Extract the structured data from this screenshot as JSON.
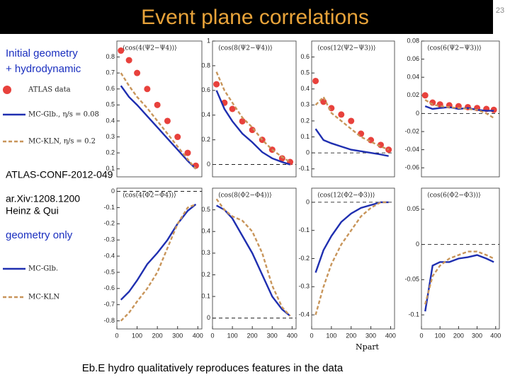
{
  "header": {
    "title": "Event plane correlations",
    "page": "23"
  },
  "notes": {
    "upper": [
      "Initial geometry",
      "+ hydrodynamic"
    ],
    "refs": [
      "ATLAS-CONF-2012-049",
      "ar.Xiv:1208.1200",
      "Heinz & Qui"
    ],
    "lower": "geometry only",
    "footer": "Eb.E hydro qualitatively reproduces features in the data"
  },
  "chart_data": [
    {
      "type": "line",
      "title": "⟨cos(4(Ψ2−Ψ4))⟩",
      "x": [
        20,
        60,
        100,
        150,
        200,
        250,
        300,
        350,
        390
      ],
      "xlim": [
        0,
        420
      ],
      "ylim": [
        0.05,
        0.9
      ],
      "yticks": [
        0.1,
        0.2,
        0.3,
        0.4,
        0.5,
        0.6,
        0.7,
        0.8
      ],
      "series": [
        {
          "name": "ATLAS data",
          "color": "#e8413c",
          "style": "points",
          "values": [
            0.84,
            0.78,
            0.7,
            0.6,
            0.5,
            0.4,
            0.3,
            0.2,
            0.12
          ]
        },
        {
          "name": "MC-Glb., η/s = 0.08",
          "color": "#1f2fb0",
          "style": "solid",
          "values": [
            0.62,
            0.55,
            0.5,
            0.43,
            0.36,
            0.29,
            0.22,
            0.15,
            0.1
          ]
        },
        {
          "name": "MC-KLN, η/s = 0.2",
          "color": "#c8955a",
          "style": "dashed",
          "values": [
            0.7,
            0.62,
            0.55,
            0.48,
            0.4,
            0.32,
            0.24,
            0.16,
            0.1
          ]
        }
      ]
    },
    {
      "type": "line",
      "title": "⟨cos(8(Ψ2−Ψ4))⟩",
      "x": [
        20,
        60,
        100,
        150,
        200,
        250,
        300,
        350,
        390
      ],
      "xlim": [
        0,
        420
      ],
      "ylim": [
        -0.1,
        1
      ],
      "yticks": [
        0,
        0.2,
        0.4,
        0.6,
        0.8,
        1
      ],
      "series": [
        {
          "color": "#e8413c",
          "style": "points",
          "values": [
            0.65,
            0.5,
            0.45,
            0.35,
            0.28,
            0.2,
            0.12,
            0.05,
            0.02
          ]
        },
        {
          "color": "#1f2fb0",
          "style": "solid",
          "values": [
            0.6,
            0.45,
            0.35,
            0.25,
            0.18,
            0.1,
            0.05,
            0.02,
            0
          ]
        },
        {
          "color": "#c8955a",
          "style": "dashed",
          "values": [
            0.75,
            0.6,
            0.5,
            0.38,
            0.3,
            0.2,
            0.12,
            0.06,
            0.02
          ]
        }
      ]
    },
    {
      "type": "line",
      "title": "⟨cos(12(Ψ2−Ψ3))⟩",
      "x": [
        20,
        60,
        100,
        150,
        200,
        250,
        300,
        350,
        390
      ],
      "xlim": [
        0,
        420
      ],
      "ylim": [
        -0.15,
        0.7
      ],
      "yticks": [
        -0.1,
        0,
        0.1,
        0.2,
        0.3,
        0.4,
        0.5,
        0.6
      ],
      "series": [
        {
          "color": "#e8413c",
          "style": "points",
          "values": [
            0.45,
            0.32,
            0.28,
            0.24,
            0.2,
            0.12,
            0.08,
            0.05,
            0.02
          ]
        },
        {
          "color": "#1f2fb0",
          "style": "solid",
          "values": [
            0.15,
            0.08,
            0.06,
            0.04,
            0.02,
            0.01,
            0,
            -0.01,
            -0.02
          ]
        },
        {
          "color": "#c8955a",
          "style": "dashed",
          "values": [
            0.3,
            0.35,
            0.25,
            0.2,
            0.15,
            0.1,
            0.07,
            0.04,
            0.02
          ]
        }
      ]
    },
    {
      "type": "line",
      "title": "⟨cos(6(Ψ2−Ψ3))⟩",
      "x": [
        20,
        60,
        100,
        150,
        200,
        250,
        300,
        350,
        390
      ],
      "xlim": [
        0,
        420
      ],
      "ylim": [
        -0.07,
        0.08
      ],
      "yticks": [
        -0.06,
        -0.04,
        -0.02,
        0,
        0.02,
        0.04,
        0.06,
        0.08
      ],
      "series": [
        {
          "color": "#e8413c",
          "style": "points",
          "values": [
            0.02,
            0.012,
            0.01,
            0.009,
            0.008,
            0.007,
            0.006,
            0.005,
            0.004
          ]
        },
        {
          "color": "#1f2fb0",
          "style": "solid",
          "values": [
            0.008,
            0.005,
            0.006,
            0.007,
            0.005,
            0.006,
            0.004,
            0.003,
            0.003
          ]
        },
        {
          "color": "#c8955a",
          "style": "dashed",
          "values": [
            0.015,
            0.01,
            0.008,
            0.007,
            0.006,
            0.005,
            0.004,
            0,
            -0.005
          ]
        }
      ]
    },
    {
      "type": "line",
      "title": "⟨cos(4(Φ2−Φ4))⟩",
      "x": [
        20,
        60,
        100,
        150,
        200,
        250,
        300,
        350,
        390
      ],
      "xlim": [
        0,
        420
      ],
      "ylim": [
        -0.85,
        0.02
      ],
      "yticks": [
        0,
        -0.1,
        -0.2,
        -0.3,
        -0.4,
        -0.5,
        -0.6,
        -0.7,
        -0.8
      ],
      "xticks": [
        0,
        100,
        200,
        300,
        400
      ],
      "series": [
        {
          "name": "MC-Glb.",
          "color": "#1f2fb0",
          "style": "solid",
          "values": [
            -0.67,
            -0.62,
            -0.55,
            -0.45,
            -0.38,
            -0.3,
            -0.2,
            -0.12,
            -0.08
          ]
        },
        {
          "name": "MC-KLN",
          "color": "#c8955a",
          "style": "dashed",
          "values": [
            -0.8,
            -0.75,
            -0.68,
            -0.6,
            -0.5,
            -0.35,
            -0.2,
            -0.1,
            -0.08
          ]
        }
      ]
    },
    {
      "type": "line",
      "title": "⟨cos(8(Φ2−Φ4))⟩",
      "x": [
        20,
        60,
        100,
        150,
        200,
        250,
        300,
        350,
        390
      ],
      "xlim": [
        0,
        420
      ],
      "ylim": [
        -0.05,
        0.6
      ],
      "yticks": [
        0,
        0.1,
        0.2,
        0.3,
        0.4,
        0.5
      ],
      "xticks": [
        0,
        100,
        200,
        300,
        400
      ],
      "series": [
        {
          "color": "#1f2fb0",
          "style": "solid",
          "values": [
            0.52,
            0.5,
            0.46,
            0.38,
            0.3,
            0.2,
            0.1,
            0.04,
            0.01
          ]
        },
        {
          "color": "#c8955a",
          "style": "dashed",
          "values": [
            0.55,
            0.5,
            0.47,
            0.45,
            0.4,
            0.3,
            0.15,
            0.05,
            0.01
          ]
        }
      ]
    },
    {
      "type": "line",
      "title": "⟨cos(12(Φ2−Φ3))⟩",
      "x": [
        20,
        60,
        100,
        150,
        200,
        250,
        300,
        350,
        390
      ],
      "xlim": [
        0,
        420
      ],
      "ylim": [
        -0.45,
        0.05
      ],
      "yticks": [
        0,
        -0.1,
        -0.2,
        -0.3,
        -0.4
      ],
      "xticks": [
        0,
        100,
        200,
        300,
        400
      ],
      "xlabel": "Npart",
      "series": [
        {
          "color": "#1f2fb0",
          "style": "solid",
          "values": [
            -0.25,
            -0.17,
            -0.12,
            -0.07,
            -0.04,
            -0.02,
            -0.01,
            0,
            0
          ]
        },
        {
          "color": "#c8955a",
          "style": "dashed",
          "values": [
            -0.4,
            -0.3,
            -0.22,
            -0.15,
            -0.1,
            -0.05,
            -0.02,
            0,
            0
          ]
        }
      ]
    },
    {
      "type": "line",
      "title": "⟨cos(6(Φ2−Φ3))⟩",
      "x": [
        20,
        60,
        100,
        150,
        200,
        250,
        300,
        350,
        390
      ],
      "xlim": [
        0,
        420
      ],
      "ylim": [
        -0.12,
        0.08
      ],
      "yticks": [
        0.05,
        0,
        -0.05,
        -0.1
      ],
      "xticks": [
        0,
        100,
        200,
        300,
        400
      ],
      "series": [
        {
          "color": "#1f2fb0",
          "style": "solid",
          "values": [
            -0.095,
            -0.03,
            -0.025,
            -0.025,
            -0.02,
            -0.018,
            -0.015,
            -0.02,
            -0.025
          ]
        },
        {
          "color": "#c8955a",
          "style": "dashed",
          "values": [
            -0.085,
            -0.045,
            -0.03,
            -0.02,
            -0.015,
            -0.01,
            -0.01,
            -0.015,
            -0.02
          ]
        }
      ]
    }
  ]
}
